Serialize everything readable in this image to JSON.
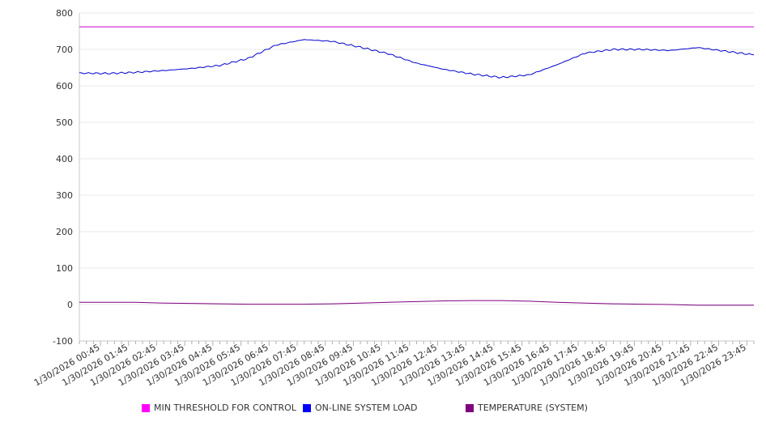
{
  "chart_data": {
    "type": "line",
    "title": "",
    "xlabel": "",
    "ylabel": "",
    "ylim": [
      -100,
      800
    ],
    "yticks": [
      -100,
      0,
      100,
      200,
      300,
      400,
      500,
      600,
      700,
      800
    ],
    "grid": true,
    "legend_position": "bottom",
    "x_range": [
      "00:00",
      "24:00"
    ],
    "x_tick_labels": [
      "1/30/2026 00:45",
      "1/30/2026 01:45",
      "1/30/2026 02:45",
      "1/30/2026 03:45",
      "1/30/2026 04:45",
      "1/30/2026 05:45",
      "1/30/2026 06:45",
      "1/30/2026 07:45",
      "1/30/2026 08:45",
      "1/30/2026 09:45",
      "1/30/2026 10:45",
      "1/30/2026 11:45",
      "1/30/2026 12:45",
      "1/30/2026 13:45",
      "1/30/2026 14:45",
      "1/30/2026 15:45",
      "1/30/2026 16:45",
      "1/30/2026 17:45",
      "1/30/2026 18:45",
      "1/30/2026 19:45",
      "1/30/2026 20:45",
      "1/30/2026 21:45",
      "1/30/2026 22:45",
      "1/30/2026 23:45"
    ],
    "x": [
      "00:00",
      "01:00",
      "02:00",
      "03:00",
      "04:00",
      "05:00",
      "06:00",
      "07:00",
      "08:00",
      "09:00",
      "10:00",
      "11:00",
      "12:00",
      "13:00",
      "14:00",
      "15:00",
      "16:00",
      "17:00",
      "18:00",
      "19:00",
      "20:00",
      "21:00",
      "22:00",
      "23:00",
      "24:00"
    ],
    "series": [
      {
        "name": "MIN THRESHOLD FOR CONTROL",
        "color": "#cc00cc",
        "values": [
          762,
          762,
          762,
          762,
          762,
          762,
          762,
          762,
          762,
          762,
          762,
          762,
          762,
          762,
          762,
          762,
          762,
          762,
          762,
          762,
          762,
          762,
          762,
          762,
          762
        ]
      },
      {
        "name": "ON-LINE SYSTEM LOAD",
        "color": "#0000cc",
        "values": [
          635,
          634,
          637,
          642,
          648,
          656,
          675,
          712,
          727,
          722,
          706,
          688,
          662,
          645,
          632,
          623,
          630,
          658,
          690,
          700,
          700,
          697,
          705,
          695,
          685
        ]
      },
      {
        "name": "TEMPERATURE (SYSTEM)",
        "color": "#800080",
        "values": [
          6,
          6,
          6,
          4,
          3,
          2,
          1,
          1,
          1,
          2,
          4,
          6,
          8,
          10,
          11,
          11,
          9,
          6,
          4,
          2,
          1,
          0,
          -2,
          -2,
          -2
        ]
      }
    ]
  }
}
